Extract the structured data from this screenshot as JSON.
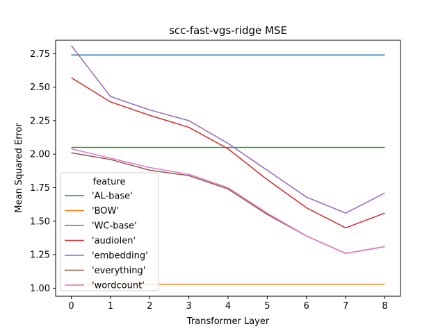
{
  "chart_data": {
    "type": "line",
    "title": "scc-fast-vgs-ridge MSE",
    "xlabel": "Transformer Layer",
    "ylabel": "Mean Squared Error",
    "x": [
      0,
      1,
      2,
      3,
      4,
      5,
      6,
      7,
      8
    ],
    "xlim": [
      -0.4,
      8.4
    ],
    "ylim": [
      0.94,
      2.85
    ],
    "yticks": [
      1.0,
      1.25,
      1.5,
      1.75,
      2.0,
      2.25,
      2.5,
      2.75
    ],
    "ytick_labels": [
      "1.00",
      "1.25",
      "1.50",
      "1.75",
      "2.00",
      "2.25",
      "2.50",
      "2.75"
    ],
    "xtick_labels": [
      "0",
      "1",
      "2",
      "3",
      "4",
      "5",
      "6",
      "7",
      "8"
    ],
    "grid": false,
    "legend_title": "feature",
    "legend_position": "center-left",
    "series": [
      {
        "name": "'AL-base'",
        "color": "#1f77b4",
        "values": [
          2.74,
          2.74,
          2.74,
          2.74,
          2.74,
          2.74,
          2.74,
          2.74,
          2.74
        ]
      },
      {
        "name": "'BOW'",
        "color": "#ff7f0e",
        "values": [
          1.03,
          1.03,
          1.03,
          1.03,
          1.03,
          1.03,
          1.03,
          1.03,
          1.03
        ]
      },
      {
        "name": "'WC-base'",
        "color": "#2ca02c",
        "values": [
          2.05,
          2.05,
          2.05,
          2.05,
          2.05,
          2.05,
          2.05,
          2.05,
          2.05
        ]
      },
      {
        "name": "'audiolen'",
        "color": "#d62728",
        "values": [
          2.57,
          2.39,
          2.29,
          2.2,
          2.04,
          1.81,
          1.6,
          1.45,
          1.56
        ]
      },
      {
        "name": "'embedding'",
        "color": "#9467bd",
        "values": [
          2.81,
          2.43,
          2.33,
          2.25,
          2.08,
          1.88,
          1.68,
          1.56,
          1.71
        ]
      },
      {
        "name": "'everything'",
        "color": "#8c564b",
        "values": [
          2.01,
          1.96,
          1.88,
          1.84,
          1.74,
          1.55,
          1.39,
          1.26,
          1.31
        ]
      },
      {
        "name": "'wordcount'",
        "color": "#e377c2",
        "values": [
          2.04,
          1.97,
          1.9,
          1.85,
          1.75,
          1.56,
          1.39,
          1.26,
          1.31
        ]
      }
    ]
  }
}
